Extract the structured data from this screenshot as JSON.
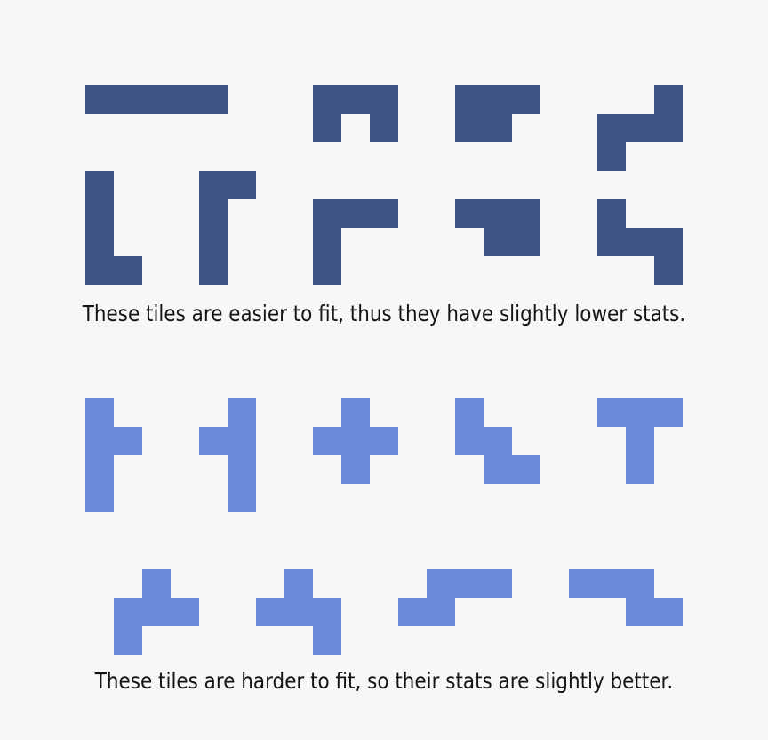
{
  "captions": {
    "easy": "These tiles are easier to fit, thus they have slightly lower stats.",
    "hard": "These tiles are harder to fit, so their stats are slightly better."
  },
  "colors": {
    "background": "#f8f7f8",
    "easy_tile": "#3f5384",
    "hard_tile": "#6a8adc"
  },
  "groups": [
    {
      "id": "easy",
      "tiles": [
        {
          "name": "tile-i-horizontal",
          "cells": [
            [
              0,
              0
            ],
            [
              1,
              0
            ],
            [
              2,
              0
            ],
            [
              3,
              0
            ],
            [
              4,
              0
            ]
          ]
        },
        {
          "name": "tile-u",
          "cells": [
            [
              0,
              0
            ],
            [
              1,
              0
            ],
            [
              2,
              0
            ],
            [
              0,
              1
            ],
            [
              2,
              1
            ]
          ]
        },
        {
          "name": "tile-p",
          "cells": [
            [
              0,
              0
            ],
            [
              1,
              0
            ],
            [
              2,
              0
            ],
            [
              0,
              1
            ],
            [
              1,
              1
            ]
          ]
        },
        {
          "name": "tile-s-corner",
          "cells": [
            [
              2,
              0
            ],
            [
              2,
              1
            ],
            [
              1,
              1
            ],
            [
              0,
              1
            ],
            [
              0,
              2
            ]
          ]
        },
        {
          "name": "tile-l-left",
          "cells": [
            [
              0,
              0
            ],
            [
              0,
              1
            ],
            [
              0,
              2
            ],
            [
              0,
              3
            ],
            [
              1,
              3
            ]
          ]
        },
        {
          "name": "tile-l-top",
          "cells": [
            [
              0,
              0
            ],
            [
              1,
              0
            ],
            [
              0,
              1
            ],
            [
              0,
              2
            ],
            [
              0,
              3
            ]
          ]
        },
        {
          "name": "tile-v",
          "cells": [
            [
              0,
              0
            ],
            [
              1,
              0
            ],
            [
              2,
              0
            ],
            [
              0,
              1
            ],
            [
              0,
              2
            ]
          ]
        },
        {
          "name": "tile-p-flat",
          "cells": [
            [
              0,
              0
            ],
            [
              1,
              0
            ],
            [
              2,
              0
            ],
            [
              1,
              1
            ],
            [
              2,
              1
            ]
          ]
        },
        {
          "name": "tile-z-step",
          "cells": [
            [
              0,
              0
            ],
            [
              0,
              1
            ],
            [
              1,
              1
            ],
            [
              2,
              1
            ],
            [
              2,
              2
            ]
          ]
        }
      ]
    },
    {
      "id": "hard",
      "tiles": [
        {
          "name": "tile-y-right",
          "cells": [
            [
              0,
              0
            ],
            [
              0,
              1
            ],
            [
              1,
              1
            ],
            [
              0,
              2
            ],
            [
              0,
              3
            ]
          ]
        },
        {
          "name": "tile-y-left",
          "cells": [
            [
              1,
              0
            ],
            [
              0,
              1
            ],
            [
              1,
              1
            ],
            [
              1,
              2
            ],
            [
              1,
              3
            ]
          ]
        },
        {
          "name": "tile-plus",
          "cells": [
            [
              1,
              0
            ],
            [
              0,
              1
            ],
            [
              1,
              1
            ],
            [
              2,
              1
            ],
            [
              1,
              2
            ]
          ]
        },
        {
          "name": "tile-w",
          "cells": [
            [
              0,
              0
            ],
            [
              0,
              1
            ],
            [
              1,
              1
            ],
            [
              1,
              2
            ],
            [
              2,
              2
            ]
          ]
        },
        {
          "name": "tile-t",
          "cells": [
            [
              0,
              0
            ],
            [
              1,
              0
            ],
            [
              2,
              0
            ],
            [
              1,
              1
            ],
            [
              1,
              2
            ]
          ]
        },
        {
          "name": "tile-f-a",
          "cells": [
            [
              1,
              0
            ],
            [
              0,
              1
            ],
            [
              1,
              1
            ],
            [
              2,
              1
            ],
            [
              0,
              2
            ]
          ]
        },
        {
          "name": "tile-f-b",
          "cells": [
            [
              1,
              0
            ],
            [
              0,
              1
            ],
            [
              1,
              1
            ],
            [
              2,
              1
            ],
            [
              2,
              2
            ]
          ]
        },
        {
          "name": "tile-n-a",
          "cells": [
            [
              1,
              0
            ],
            [
              2,
              0
            ],
            [
              3,
              0
            ],
            [
              0,
              1
            ],
            [
              1,
              1
            ]
          ]
        },
        {
          "name": "tile-n-b",
          "cells": [
            [
              0,
              0
            ],
            [
              1,
              0
            ],
            [
              2,
              0
            ],
            [
              2,
              1
            ],
            [
              3,
              1
            ]
          ]
        }
      ]
    }
  ]
}
